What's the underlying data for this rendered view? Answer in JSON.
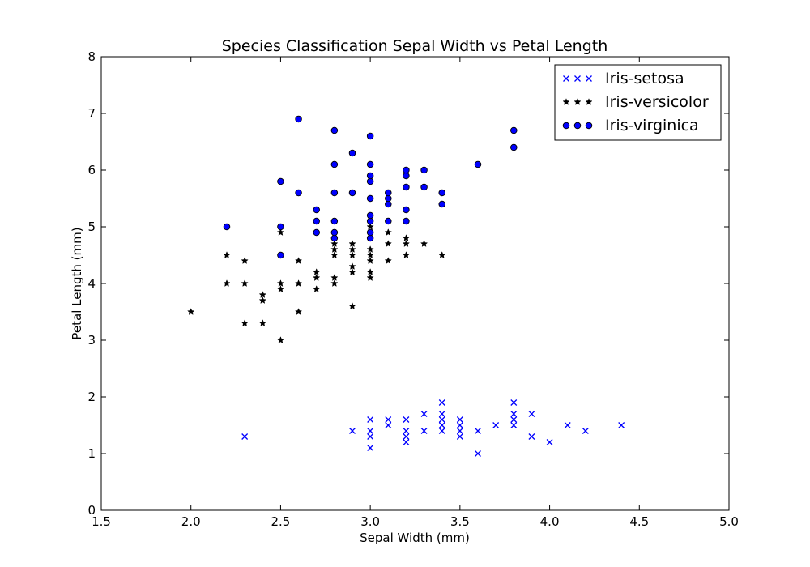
{
  "chart_data": {
    "type": "scatter",
    "title": "Species Classification Sepal Width vs Petal Length",
    "xlabel": "Sepal Width (mm)",
    "ylabel": "Petal Length (mm)",
    "xlim": [
      1.5,
      5.0
    ],
    "ylim": [
      0,
      8
    ],
    "xticks": [
      "1.5",
      "2.0",
      "2.5",
      "3.0",
      "3.5",
      "4.0",
      "4.5",
      "5.0"
    ],
    "yticks": [
      "0",
      "1",
      "2",
      "3",
      "4",
      "5",
      "6",
      "7",
      "8"
    ],
    "grid": false,
    "legend_position": "top-right",
    "series": [
      {
        "name": "Iris-setosa",
        "marker": "x",
        "color": "#0000ff",
        "points": [
          [
            2.3,
            1.3
          ],
          [
            2.9,
            1.4
          ],
          [
            3.0,
            1.1
          ],
          [
            3.0,
            1.3
          ],
          [
            3.0,
            1.4
          ],
          [
            3.0,
            1.6
          ],
          [
            3.1,
            1.5
          ],
          [
            3.1,
            1.6
          ],
          [
            3.2,
            1.2
          ],
          [
            3.2,
            1.3
          ],
          [
            3.2,
            1.4
          ],
          [
            3.2,
            1.6
          ],
          [
            3.3,
            1.4
          ],
          [
            3.3,
            1.7
          ],
          [
            3.4,
            1.4
          ],
          [
            3.4,
            1.5
          ],
          [
            3.4,
            1.6
          ],
          [
            3.4,
            1.7
          ],
          [
            3.4,
            1.9
          ],
          [
            3.5,
            1.3
          ],
          [
            3.5,
            1.4
          ],
          [
            3.5,
            1.5
          ],
          [
            3.5,
            1.6
          ],
          [
            3.6,
            1.0
          ],
          [
            3.6,
            1.4
          ],
          [
            3.7,
            1.5
          ],
          [
            3.8,
            1.5
          ],
          [
            3.8,
            1.6
          ],
          [
            3.8,
            1.7
          ],
          [
            3.8,
            1.9
          ],
          [
            3.9,
            1.3
          ],
          [
            3.9,
            1.7
          ],
          [
            4.0,
            1.2
          ],
          [
            4.1,
            1.5
          ],
          [
            4.2,
            1.4
          ],
          [
            4.4,
            1.5
          ]
        ]
      },
      {
        "name": "Iris-versicolor",
        "marker": "star",
        "color": "#000000",
        "points": [
          [
            2.0,
            3.5
          ],
          [
            2.2,
            4.0
          ],
          [
            2.2,
            4.5
          ],
          [
            2.3,
            3.3
          ],
          [
            2.3,
            4.0
          ],
          [
            2.3,
            4.4
          ],
          [
            2.4,
            3.3
          ],
          [
            2.4,
            3.7
          ],
          [
            2.4,
            3.8
          ],
          [
            2.5,
            3.0
          ],
          [
            2.5,
            3.9
          ],
          [
            2.5,
            4.0
          ],
          [
            2.5,
            4.9
          ],
          [
            2.6,
            3.5
          ],
          [
            2.6,
            4.0
          ],
          [
            2.6,
            4.4
          ],
          [
            2.7,
            3.9
          ],
          [
            2.7,
            4.1
          ],
          [
            2.7,
            4.2
          ],
          [
            2.8,
            4.0
          ],
          [
            2.8,
            4.1
          ],
          [
            2.8,
            4.5
          ],
          [
            2.8,
            4.6
          ],
          [
            2.8,
            4.7
          ],
          [
            2.9,
            3.6
          ],
          [
            2.9,
            4.2
          ],
          [
            2.9,
            4.3
          ],
          [
            2.9,
            4.5
          ],
          [
            2.9,
            4.6
          ],
          [
            2.9,
            4.7
          ],
          [
            3.0,
            4.1
          ],
          [
            3.0,
            4.2
          ],
          [
            3.0,
            4.4
          ],
          [
            3.0,
            4.5
          ],
          [
            3.0,
            4.6
          ],
          [
            3.0,
            4.8
          ],
          [
            3.0,
            5.0
          ],
          [
            3.1,
            4.4
          ],
          [
            3.1,
            4.7
          ],
          [
            3.1,
            4.9
          ],
          [
            3.2,
            4.5
          ],
          [
            3.2,
            4.7
          ],
          [
            3.2,
            4.8
          ],
          [
            3.3,
            4.7
          ],
          [
            3.4,
            4.5
          ]
        ]
      },
      {
        "name": "Iris-virginica",
        "marker": "circle",
        "color": "#0000ff",
        "points": [
          [
            2.2,
            5.0
          ],
          [
            2.5,
            4.5
          ],
          [
            2.5,
            5.0
          ],
          [
            2.5,
            5.8
          ],
          [
            2.6,
            5.6
          ],
          [
            2.6,
            6.9
          ],
          [
            2.7,
            4.9
          ],
          [
            2.7,
            5.1
          ],
          [
            2.7,
            5.3
          ],
          [
            2.8,
            4.8
          ],
          [
            2.8,
            4.9
          ],
          [
            2.8,
            5.1
          ],
          [
            2.8,
            5.6
          ],
          [
            2.8,
            6.1
          ],
          [
            2.8,
            6.7
          ],
          [
            2.9,
            5.6
          ],
          [
            2.9,
            6.3
          ],
          [
            3.0,
            4.8
          ],
          [
            3.0,
            4.9
          ],
          [
            3.0,
            5.1
          ],
          [
            3.0,
            5.2
          ],
          [
            3.0,
            5.5
          ],
          [
            3.0,
            5.8
          ],
          [
            3.0,
            5.9
          ],
          [
            3.0,
            6.1
          ],
          [
            3.0,
            6.6
          ],
          [
            3.1,
            5.1
          ],
          [
            3.1,
            5.4
          ],
          [
            3.1,
            5.5
          ],
          [
            3.1,
            5.6
          ],
          [
            3.2,
            5.1
          ],
          [
            3.2,
            5.3
          ],
          [
            3.2,
            5.7
          ],
          [
            3.2,
            5.9
          ],
          [
            3.2,
            6.0
          ],
          [
            3.3,
            5.7
          ],
          [
            3.3,
            6.0
          ],
          [
            3.4,
            5.4
          ],
          [
            3.4,
            5.6
          ],
          [
            3.6,
            6.1
          ],
          [
            3.8,
            6.4
          ],
          [
            3.8,
            6.7
          ]
        ]
      }
    ]
  }
}
